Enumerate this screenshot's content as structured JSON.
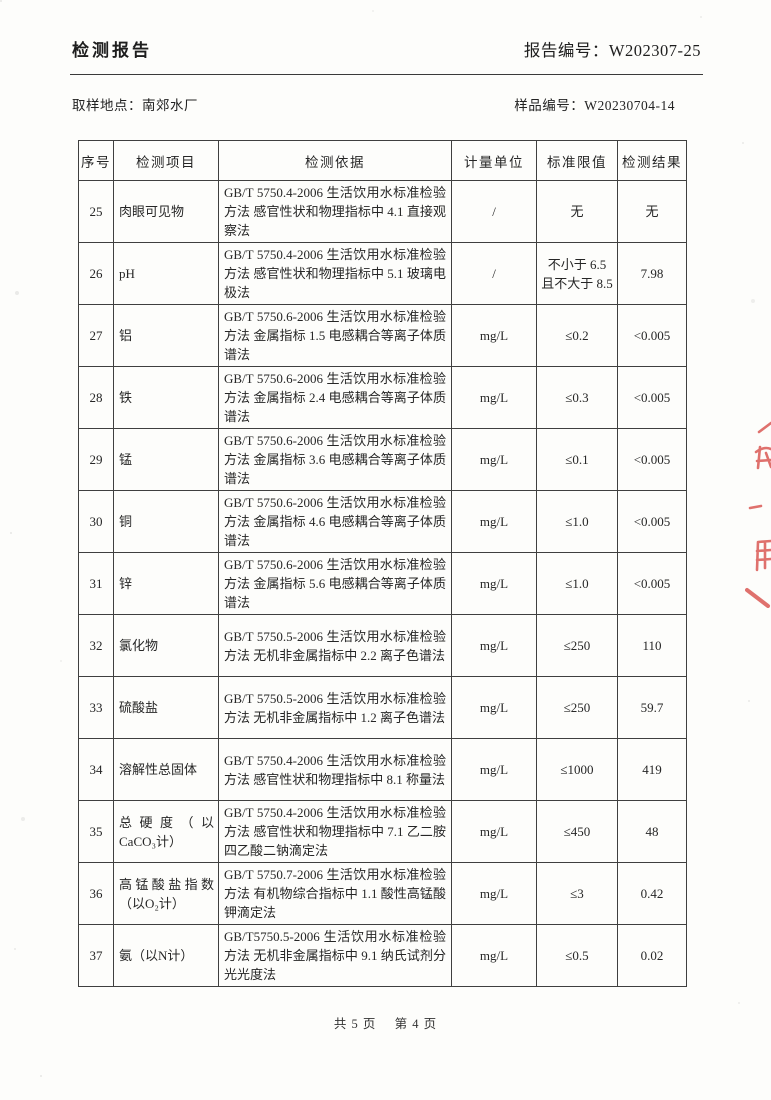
{
  "page": {
    "title": "检测报告",
    "report_no_label": "报告编号：",
    "report_no": "W202307-25",
    "sampling_label": "取样地点：",
    "sampling_value": "南郊水厂",
    "sample_no_label": "样品编号：",
    "sample_no": "W20230704-14"
  },
  "table": {
    "columns": [
      "序号",
      "检测项目",
      "检测依据",
      "计量单位",
      "标准限值",
      "检测结果"
    ],
    "rows": [
      {
        "no": "25",
        "item": "肉眼可见物",
        "basis": "GB/T 5750.4-2006 生活饮用水标准检验方法 感官性状和物理指标中 4.1 直接观察法",
        "unit": "/",
        "limit": "无",
        "result": "无"
      },
      {
        "no": "26",
        "item": "pH",
        "basis": "GB/T 5750.4-2006 生活饮用水标准检验方法 感官性状和物理指标中 5.1 玻璃电极法",
        "unit": "/",
        "limit": "不小于 6.5 且不大于 8.5",
        "result": "7.98"
      },
      {
        "no": "27",
        "item": "铝",
        "basis": "GB/T 5750.6-2006 生活饮用水标准检验方法 金属指标 1.5 电感耦合等离子体质谱法",
        "unit": "mg/L",
        "limit": "≤0.2",
        "result": "<0.005"
      },
      {
        "no": "28",
        "item": "铁",
        "basis": "GB/T 5750.6-2006 生活饮用水标准检验方法 金属指标 2.4 电感耦合等离子体质谱法",
        "unit": "mg/L",
        "limit": "≤0.3",
        "result": "<0.005"
      },
      {
        "no": "29",
        "item": "锰",
        "basis": "GB/T 5750.6-2006 生活饮用水标准检验方法 金属指标 3.6 电感耦合等离子体质谱法",
        "unit": "mg/L",
        "limit": "≤0.1",
        "result": "<0.005"
      },
      {
        "no": "30",
        "item": "铜",
        "basis": "GB/T 5750.6-2006 生活饮用水标准检验方法 金属指标 4.6 电感耦合等离子体质谱法",
        "unit": "mg/L",
        "limit": "≤1.0",
        "result": "<0.005"
      },
      {
        "no": "31",
        "item": "锌",
        "basis": "GB/T 5750.6-2006 生活饮用水标准检验方法 金属指标 5.6 电感耦合等离子体质谱法",
        "unit": "mg/L",
        "limit": "≤1.0",
        "result": "<0.005"
      },
      {
        "no": "32",
        "item": "氯化物",
        "basis": "GB/T 5750.5-2006 生活饮用水标准检验方法 无机非金属指标中 2.2 离子色谱法",
        "unit": "mg/L",
        "limit": "≤250",
        "result": "110"
      },
      {
        "no": "33",
        "item": "硫酸盐",
        "basis": "GB/T 5750.5-2006 生活饮用水标准检验方法 无机非金属指标中 1.2 离子色谱法",
        "unit": "mg/L",
        "limit": "≤250",
        "result": "59.7"
      },
      {
        "no": "34",
        "item": "溶解性总固体",
        "basis": "GB/T 5750.4-2006 生活饮用水标准检验方法 感官性状和物理指标中 8.1 称量法",
        "unit": "mg/L",
        "limit": "≤1000",
        "result": "419"
      },
      {
        "no": "35",
        "item": "总硬度（以CaCO₃计）",
        "basis": "GB/T 5750.4-2006 生活饮用水标准检验方法 感官性状和物理指标中 7.1 乙二胺四乙酸二钠滴定法",
        "unit": "mg/L",
        "limit": "≤450",
        "result": "48"
      },
      {
        "no": "36",
        "item": "高锰酸盐指数（以O₂计）",
        "basis": "GB/T 5750.7-2006 生活饮用水标准检验方法 有机物综合指标中 1.1 酸性高锰酸钾滴定法",
        "unit": "mg/L",
        "limit": "≤3",
        "result": "0.42"
      },
      {
        "no": "37",
        "item": "氨（以N计）",
        "basis": "GB/T5750.5-2006 生活饮用水标准检验方法 无机非金属指标中 9.1 纳氏试剂分光光度法",
        "unit": "mg/L",
        "limit": "≤0.5",
        "result": "0.02"
      }
    ]
  },
  "footer": {
    "total_pages": "共 5 页",
    "current_page": "第 4 页"
  },
  "seal": {
    "color": "#d9534f"
  }
}
